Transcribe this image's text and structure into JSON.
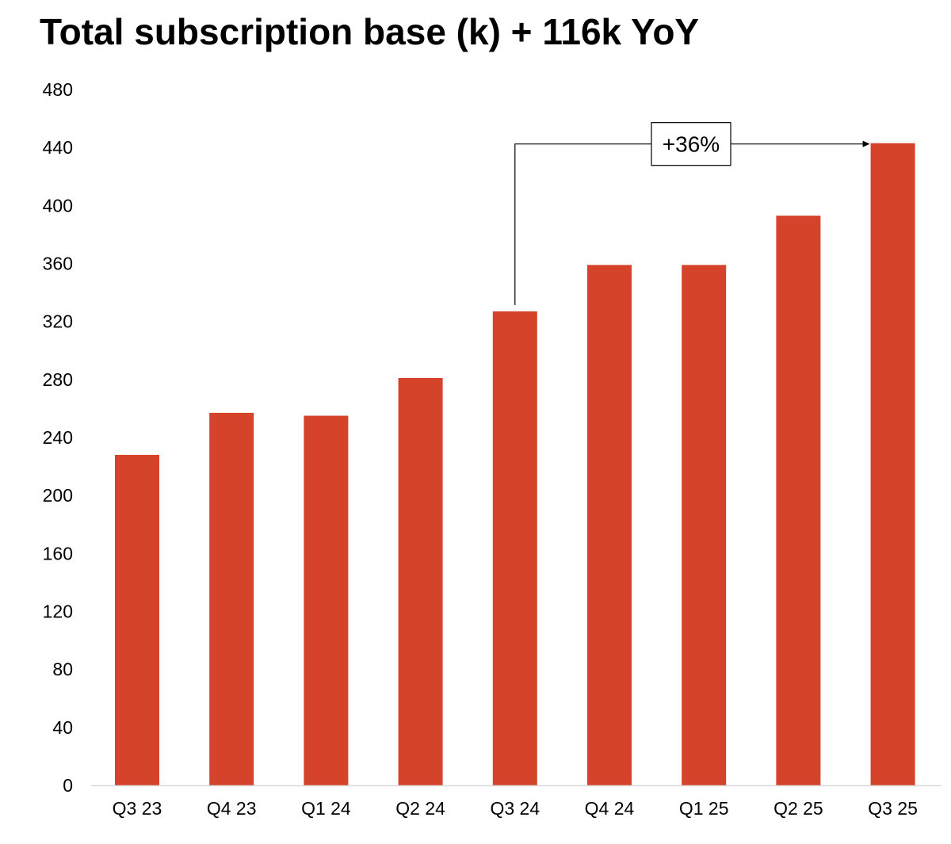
{
  "chart_data": {
    "type": "bar",
    "title": "Total subscription base (k) + 116k YoY",
    "xlabel": "",
    "ylabel": "",
    "categories": [
      "Q3 23",
      "Q4 23",
      "Q1 24",
      "Q2 24",
      "Q3 24",
      "Q4 24",
      "Q1 25",
      "Q2 25",
      "Q3 25"
    ],
    "values": [
      228,
      257,
      255,
      281,
      327,
      359,
      359,
      393,
      443
    ],
    "ylim": [
      0,
      480
    ],
    "yticks": [
      0,
      40,
      80,
      120,
      160,
      200,
      240,
      280,
      320,
      360,
      400,
      440,
      480
    ],
    "ytick_labels": [
      "0",
      "40",
      "80",
      "120",
      "160",
      "200",
      "240",
      "280",
      "320",
      "360",
      "400",
      "440",
      "480"
    ],
    "grid": false,
    "legend": "none",
    "colors": {
      "bar": "#d4432a",
      "axis": "#d9d9d9",
      "annotation": "#000000"
    },
    "annotation": {
      "label": "+36%",
      "from_category": "Q3 24",
      "to_category": "Q3 25"
    }
  }
}
